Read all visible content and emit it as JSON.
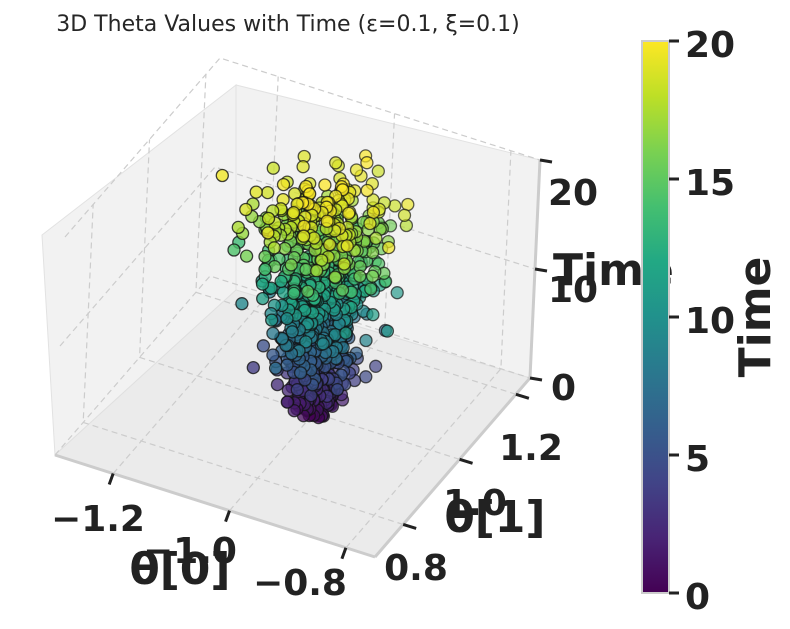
{
  "chart_data": {
    "type": "scatter",
    "projection": "3d",
    "title": "3D Theta Values with Time (ε=0.1, ξ=0.1)",
    "xlabel": "θ[0]",
    "ylabel": "θ[1]",
    "zlabel": "Time",
    "xlim": [
      -1.3,
      -0.75
    ],
    "ylim": [
      0.75,
      1.3
    ],
    "zlim": [
      0,
      20
    ],
    "xticks": [
      "−1.2",
      "−1.0",
      "−0.8"
    ],
    "yticks": [
      "0.8",
      "1.0",
      "1.2"
    ],
    "zticks": [
      "0",
      "10",
      "20"
    ],
    "grid": true,
    "colormap": "viridis",
    "colorbar": {
      "label": "Time",
      "ticks": [
        "0",
        "5",
        "10",
        "15",
        "20"
      ],
      "range": [
        0,
        20
      ]
    },
    "marker_edge_color": "#111111",
    "n_points": 1000,
    "time_range": [
      0,
      20
    ],
    "structure": "cloud of points around θ[0]≈-1.0, θ[1]≈1.0 whose spread grows with time"
  }
}
